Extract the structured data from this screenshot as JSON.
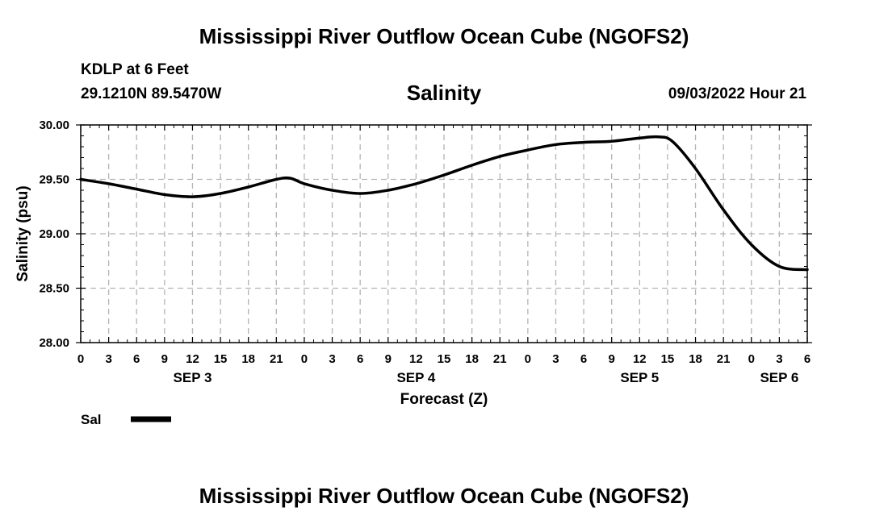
{
  "header": {
    "title": "Mississippi River Outflow Ocean Cube (NGOFS2)",
    "station": "KDLP at 6 Feet",
    "coords": "29.1210N  89.5470W",
    "datetime": "09/03/2022 Hour 21"
  },
  "footer": {
    "title": "Mississippi River Outflow Ocean Cube (NGOFS2)"
  },
  "legend": {
    "label": "Sal",
    "color": "#000000"
  },
  "chart_data": {
    "type": "line",
    "title": "Salinity",
    "xlabel": "Forecast (Z)",
    "ylabel": "Salinity (psu)",
    "xlim": [
      0,
      78
    ],
    "ylim": [
      28.0,
      30.0
    ],
    "grid": true,
    "y_ticks": [
      "28.00",
      "28.50",
      "29.00",
      "29.50",
      "30.00"
    ],
    "y_tick_values": [
      28.0,
      28.5,
      29.0,
      29.5,
      30.0
    ],
    "x_tick_labels": [
      "0",
      "3",
      "6",
      "9",
      "12",
      "15",
      "18",
      "21",
      "0",
      "3",
      "6",
      "9",
      "12",
      "15",
      "18",
      "21",
      "0",
      "3",
      "6",
      "9",
      "12",
      "15",
      "18",
      "21",
      "0",
      "3",
      "6"
    ],
    "day_labels": [
      {
        "label": "SEP 3",
        "hour": 12
      },
      {
        "label": "SEP 4",
        "hour": 36
      },
      {
        "label": "SEP 5",
        "hour": 60
      },
      {
        "label": "SEP 6",
        "hour": 75
      }
    ],
    "series": [
      {
        "name": "Sal",
        "x": [
          0,
          3,
          6,
          9,
          12,
          15,
          18,
          21,
          22.5,
          24,
          27,
          30,
          33,
          36,
          39,
          42,
          45,
          48,
          51,
          54,
          57,
          60,
          62,
          63.5,
          66,
          69,
          72,
          75,
          78
        ],
        "values": [
          29.5,
          29.46,
          29.41,
          29.36,
          29.34,
          29.37,
          29.43,
          29.5,
          29.51,
          29.46,
          29.4,
          29.37,
          29.4,
          29.46,
          29.54,
          29.63,
          29.71,
          29.77,
          29.82,
          29.84,
          29.85,
          29.88,
          29.89,
          29.85,
          29.6,
          29.22,
          28.9,
          28.7,
          28.67
        ]
      }
    ]
  }
}
